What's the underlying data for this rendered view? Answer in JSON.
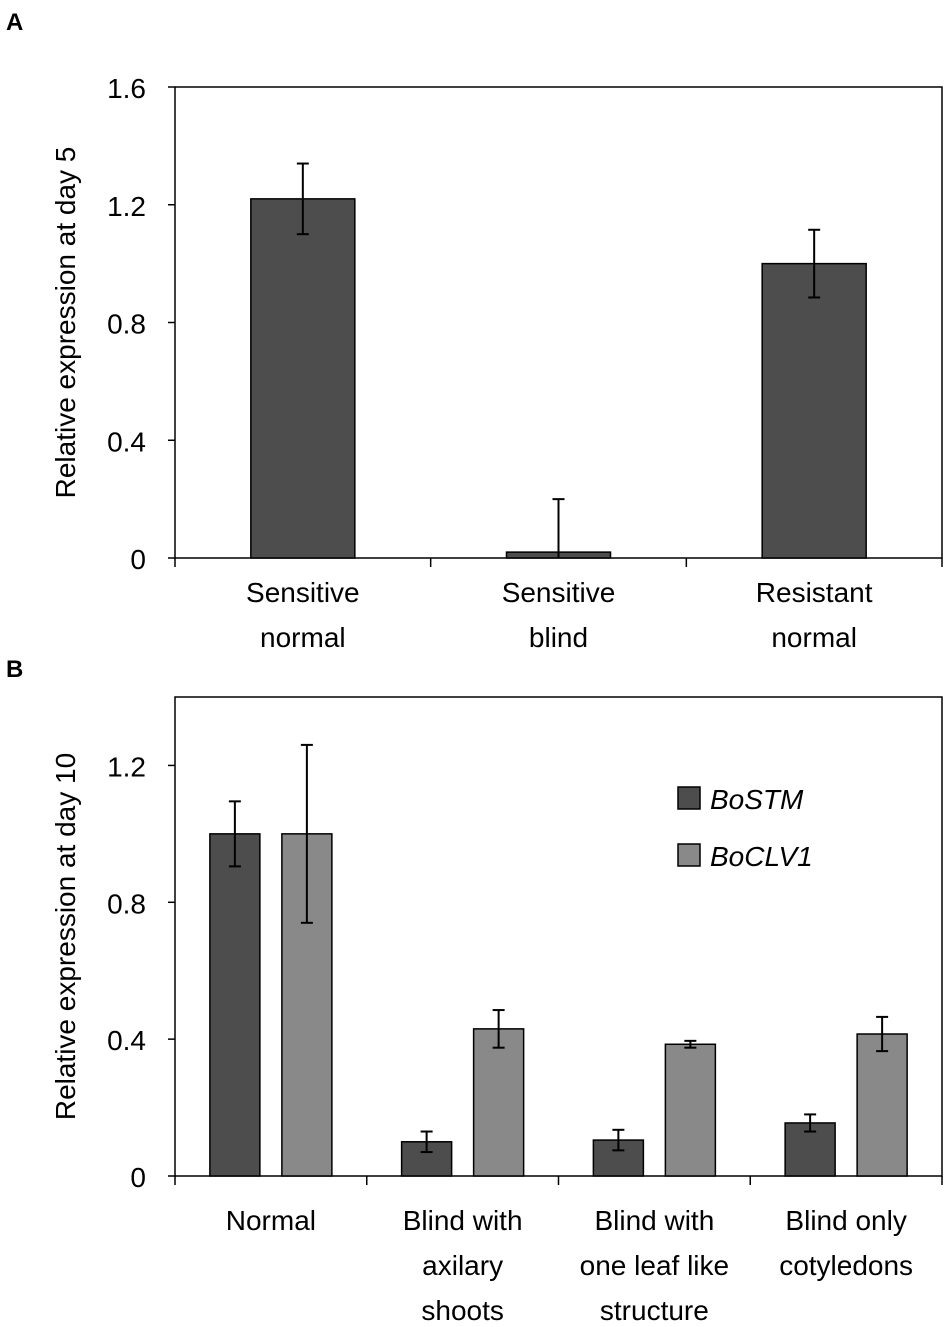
{
  "chart_data": [
    {
      "panel": "A",
      "type": "bar",
      "title": "",
      "xlabel": "",
      "ylabel": "Relative expression at day 5",
      "ylim": [
        0,
        1.6
      ],
      "yticks": [
        "0",
        "0.4",
        "0.8",
        "1.2",
        "1.6"
      ],
      "ytick_values": [
        0,
        0.4,
        0.8,
        1.2,
        1.6
      ],
      "categories": [
        [
          "Sensitive",
          "normal"
        ],
        [
          "Sensitive",
          "blind"
        ],
        [
          "Resistant",
          "normal"
        ]
      ],
      "series": [
        {
          "name": "",
          "color": "#4d4d4d",
          "values": [
            1.22,
            0.02,
            1.0
          ],
          "errors": [
            0.12,
            0.18,
            0.115
          ]
        }
      ]
    },
    {
      "panel": "B",
      "type": "bar",
      "title": "",
      "xlabel": "",
      "ylabel": "Relative expression at day 10",
      "ylim": [
        0,
        1.4
      ],
      "yticks": [
        "0",
        "0.4",
        "0.8",
        "1.2"
      ],
      "ytick_values": [
        0,
        0.4,
        0.8,
        1.2
      ],
      "categories": [
        [
          "Normal"
        ],
        [
          "Blind with",
          "axilary",
          "shoots"
        ],
        [
          "Blind with",
          "one leaf like",
          "structure"
        ],
        [
          "Blind only",
          "cotyledons"
        ]
      ],
      "legend": {
        "placement": "top-right"
      },
      "series": [
        {
          "name": "BoSTM",
          "color": "#4d4d4d",
          "values": [
            1.0,
            0.1,
            0.105,
            0.155
          ],
          "errors": [
            0.095,
            0.03,
            0.03,
            0.025
          ]
        },
        {
          "name": "BoCLV1",
          "color": "#898989",
          "values": [
            1.0,
            0.43,
            0.385,
            0.415
          ],
          "errors": [
            0.26,
            0.055,
            0.01,
            0.05
          ]
        }
      ]
    }
  ]
}
